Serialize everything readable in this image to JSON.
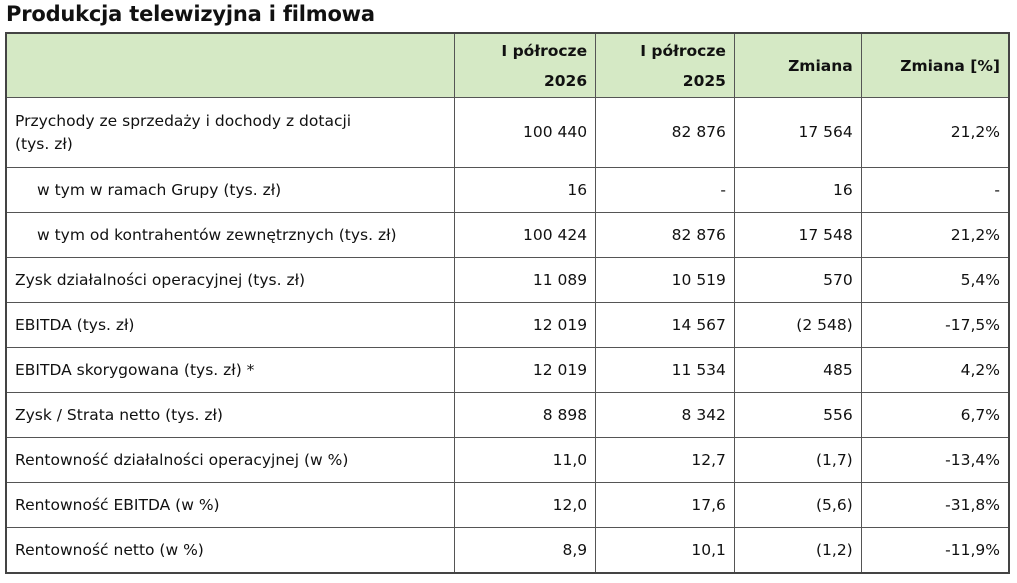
{
  "title": "Produkcja telewizyjna i filmowa",
  "table": {
    "header": [
      [
        "I półrocze",
        "2026"
      ],
      [
        "I półrocze",
        "2025"
      ],
      "Zmiana",
      "Zmiana [%]"
    ],
    "rows": [
      [
        [
          "Przychody ze sprzedaży i dochody z dotacji",
          "(tys. zł)"
        ],
        "100 440",
        "82 876",
        "17 564",
        "21,2%"
      ],
      [
        "w tym w ramach Grupy (tys. zł)",
        "16",
        "-",
        "16",
        "-"
      ],
      [
        "w tym od kontrahentów zewnętrznych (tys. zł)",
        "100 424",
        "82 876",
        "17 548",
        "21,2%"
      ],
      [
        "Zysk działalności operacyjnej (tys. zł)",
        "11 089",
        "10 519",
        "570",
        "5,4%"
      ],
      [
        "EBITDA (tys. zł)",
        "12 019",
        "14 567",
        "(2 548)",
        "-17,5%"
      ],
      [
        "EBITDA skorygowana (tys. zł) *",
        "12 019",
        "11 534",
        "485",
        "4,2%"
      ],
      [
        "Zysk / Strata netto (tys. zł)",
        "8 898",
        "8 342",
        "556",
        "6,7%"
      ],
      [
        "Rentowność działalności operacyjnej (w %)",
        "11,0",
        "12,7",
        "(1,7)",
        "-13,4%"
      ],
      [
        "Rentowność EBITDA (w %)",
        "12,0",
        "17,6",
        "(5,6)",
        "-31,8%"
      ],
      [
        "Rentowność netto (w %)",
        "8,9",
        "10,1",
        "(1,2)",
        "-11,9%"
      ]
    ]
  }
}
